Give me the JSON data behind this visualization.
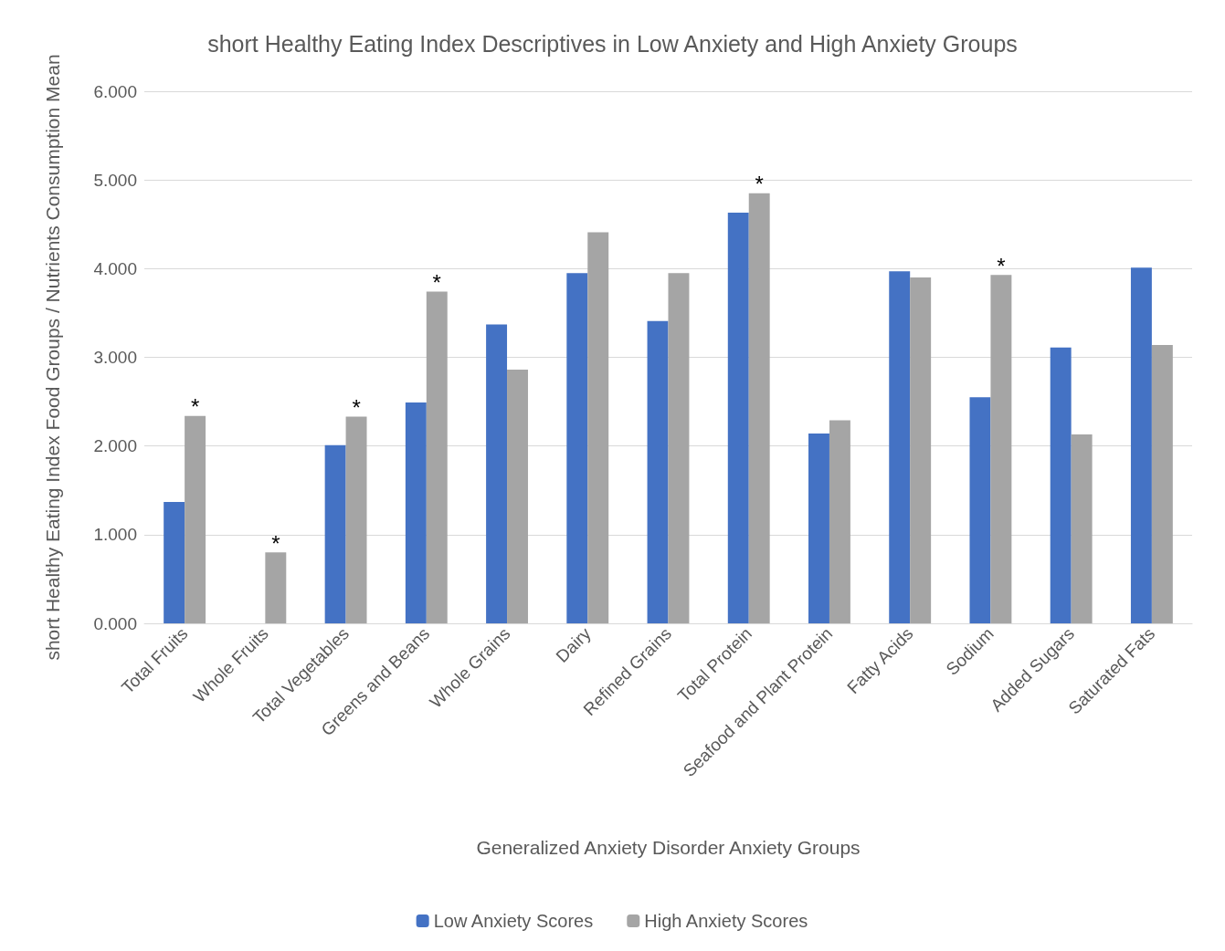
{
  "chart_data": {
    "type": "bar",
    "title": "short Healthy Eating Index Descriptives in Low Anxiety and High Anxiety Groups",
    "xlabel": "Generalized Anxiety Disorder Anxiety Groups",
    "ylabel": "short Healthy Eating Index Food Groups / Nutrients Consumption Mean",
    "categories": [
      "Total Fruits",
      "Whole Fruits",
      "Total Vegetables",
      "Greens and Beans",
      "Whole Grains",
      "Dairy",
      "Refined Grains",
      "Total Protein",
      "Seafood and Plant Protein",
      "Fatty Acids",
      "Sodium",
      "Added Sugars",
      "Saturated Fats"
    ],
    "series": [
      {
        "name": "Low Anxiety Scores",
        "color": "#4472c4",
        "values": [
          1.37,
          0,
          2.01,
          2.49,
          3.37,
          3.95,
          3.41,
          4.63,
          2.14,
          3.97,
          2.55,
          3.11,
          4.01
        ]
      },
      {
        "name": "High Anxiety Scores",
        "color": "#a5a5a5",
        "values": [
          2.34,
          0.8,
          2.33,
          3.74,
          2.86,
          4.41,
          3.95,
          4.85,
          2.29,
          3.9,
          3.93,
          2.13,
          3.14
        ]
      }
    ],
    "ylim": [
      0,
      6
    ],
    "yticks": [
      {
        "value": 0,
        "label": "0.000"
      },
      {
        "value": 1,
        "label": "1.000"
      },
      {
        "value": 2,
        "label": "2.000"
      },
      {
        "value": 3,
        "label": "3.000"
      },
      {
        "value": 4,
        "label": "4.000"
      },
      {
        "value": 5,
        "label": "5.000"
      },
      {
        "value": 6,
        "label": "6.000"
      }
    ],
    "grid": "y",
    "legend": "bottom",
    "annotations": [
      {
        "text": "*",
        "x": "Total Fruits",
        "y": 2.34
      },
      {
        "text": "*",
        "x": "Whole Fruits",
        "y": 0.8
      },
      {
        "text": "*",
        "x": "Total Vegetables",
        "y": 2.33
      },
      {
        "text": "*",
        "x": "Greens and Beans",
        "y": 3.74
      },
      {
        "text": "*",
        "x": "Total Protein",
        "y": 4.85
      },
      {
        "text": "*",
        "x": "Sodium",
        "y": 3.93
      }
    ]
  }
}
